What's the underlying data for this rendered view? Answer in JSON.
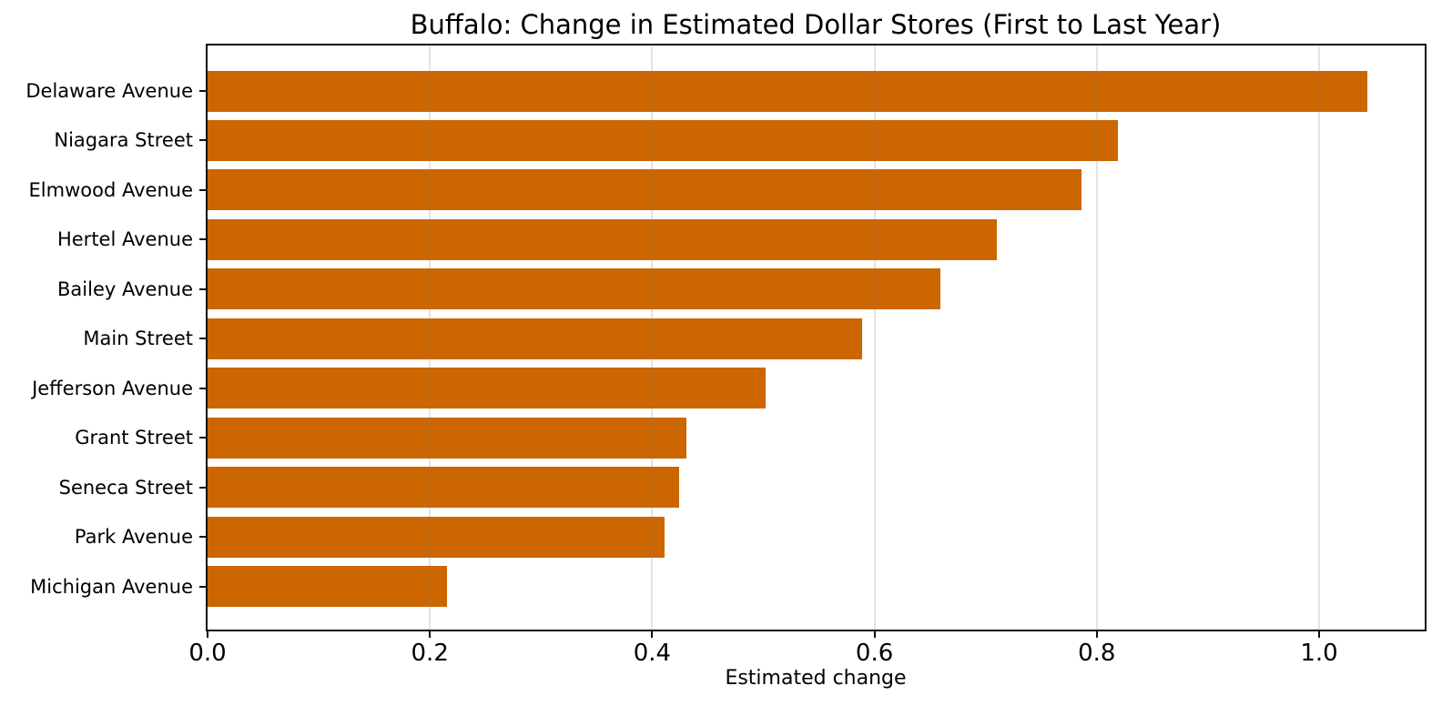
{
  "chart_data": {
    "type": "bar",
    "orientation": "horizontal",
    "title": "Buffalo: Change in Estimated Dollar Stores (First to Last Year)",
    "xlabel": "Estimated change",
    "ylabel": "",
    "categories": [
      "Delaware Avenue",
      "Niagara Street",
      "Elmwood Avenue",
      "Hertel Avenue",
      "Bailey Avenue",
      "Main Street",
      "Jefferson Avenue",
      "Grant Street",
      "Seneca Street",
      "Park Avenue",
      "Michigan Avenue"
    ],
    "values": [
      1.043,
      0.819,
      0.786,
      0.71,
      0.659,
      0.589,
      0.502,
      0.431,
      0.424,
      0.411,
      0.215
    ],
    "xlim": [
      0,
      1.095
    ],
    "xticks": [
      0.0,
      0.2,
      0.4,
      0.6,
      0.8,
      1.0
    ],
    "xtick_labels": [
      "0.0",
      "0.2",
      "0.4",
      "0.6",
      "0.8",
      "1.0"
    ],
    "bar_color": "#CC6600",
    "spine_color": "#111111",
    "grid": "vertical",
    "legend": "none"
  }
}
